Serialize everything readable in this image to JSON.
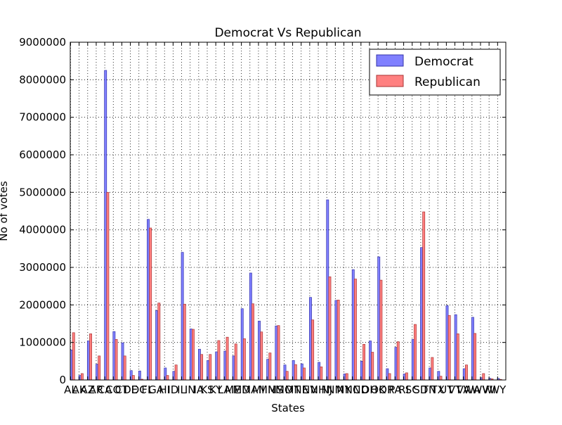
{
  "chart_data": {
    "type": "bar",
    "title": "Democrat Vs Republican",
    "xlabel": "States",
    "ylabel": "No of votes",
    "ylim": [
      0,
      9000000
    ],
    "yticks": [
      0,
      1000000,
      2000000,
      3000000,
      4000000,
      5000000,
      6000000,
      7000000,
      8000000,
      9000000
    ],
    "grid": true,
    "legend_position": "top-right",
    "categories": [
      "AL",
      "AK",
      "AZ",
      "AR",
      "CA",
      "CO",
      "CT",
      "DE",
      "DC",
      "FL",
      "GA",
      "HI",
      "ID",
      "IL",
      "IN",
      "IA",
      "KS",
      "KY",
      "LA",
      "ME",
      "MD",
      "MA",
      "MI",
      "MN",
      "MS",
      "MO",
      "MT",
      "NE",
      "NV",
      "NH",
      "NJ",
      "NM",
      "NY",
      "NC",
      "ND",
      "OH",
      "OK",
      "OR",
      "PA",
      "RI",
      "SC",
      "SD",
      "TN",
      "TX",
      "UT",
      "VT",
      "VA",
      "WA",
      "WV",
      "WI",
      "WY"
    ],
    "series": [
      {
        "name": "Democrat",
        "color": "#8080ff",
        "edge": "#3333aa",
        "values": [
          800000,
          120000,
          1040000,
          420000,
          8250000,
          1290000,
          990000,
          250000,
          240000,
          4280000,
          1850000,
          320000,
          230000,
          3400000,
          1360000,
          820000,
          520000,
          750000,
          770000,
          640000,
          1900000,
          2850000,
          1570000,
          550000,
          1440000,
          400000,
          520000,
          430000,
          2200000,
          470000,
          4800000,
          2120000,
          160000,
          2940000,
          500000,
          1040000,
          3280000,
          300000,
          870000,
          160000,
          1080000,
          3530000,
          320000,
          230000,
          1980000,
          1740000,
          300000,
          1670000,
          60000,
          45000,
          40000
        ]
      },
      {
        "name": "Republican",
        "color": "#ff8080",
        "edge": "#aa3333",
        "values": [
          1260000,
          170000,
          1230000,
          640000,
          5000000,
          1080000,
          640000,
          120000,
          20000,
          4050000,
          2050000,
          120000,
          400000,
          2020000,
          1350000,
          680000,
          680000,
          1050000,
          1140000,
          960000,
          1100000,
          2030000,
          1280000,
          720000,
          1450000,
          230000,
          410000,
          320000,
          1600000,
          350000,
          2750000,
          2130000,
          170000,
          2690000,
          950000,
          740000,
          2660000,
          170000,
          1020000,
          190000,
          1480000,
          4480000,
          600000,
          100000,
          1720000,
          1230000,
          400000,
          1240000,
          170000,
          30000,
          15000
        ]
      }
    ]
  }
}
